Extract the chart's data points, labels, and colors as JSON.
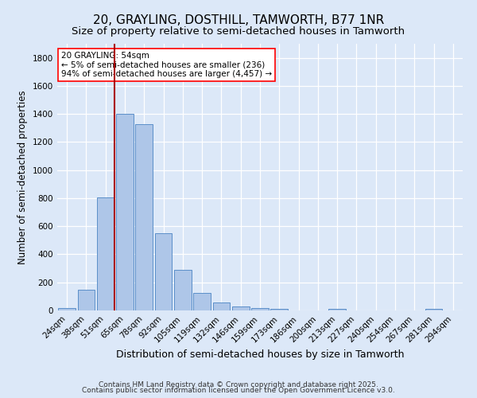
{
  "title": "20, GRAYLING, DOSTHILL, TAMWORTH, B77 1NR",
  "subtitle": "Size of property relative to semi-detached houses in Tamworth",
  "xlabel": "Distribution of semi-detached houses by size in Tamworth",
  "ylabel": "Number of semi-detached properties",
  "categories": [
    "24sqm",
    "38sqm",
    "51sqm",
    "65sqm",
    "78sqm",
    "92sqm",
    "105sqm",
    "119sqm",
    "132sqm",
    "146sqm",
    "159sqm",
    "173sqm",
    "186sqm",
    "200sqm",
    "213sqm",
    "227sqm",
    "240sqm",
    "254sqm",
    "267sqm",
    "281sqm",
    "294sqm"
  ],
  "values": [
    15,
    150,
    805,
    1400,
    1325,
    550,
    290,
    125,
    55,
    28,
    15,
    10,
    0,
    0,
    10,
    0,
    0,
    0,
    0,
    10,
    0
  ],
  "bar_color": "#aec6e8",
  "bar_edge_color": "#5b8fc9",
  "bg_color": "#dce8f8",
  "grid_color": "#ffffff",
  "vline_color": "#aa0000",
  "vline_x_index": 2.45,
  "annotation_text": "20 GRAYLING: 54sqm\n← 5% of semi-detached houses are smaller (236)\n94% of semi-detached houses are larger (4,457) →",
  "ylim": [
    0,
    1900
  ],
  "yticks": [
    0,
    200,
    400,
    600,
    800,
    1000,
    1200,
    1400,
    1600,
    1800
  ],
  "footer_line1": "Contains HM Land Registry data © Crown copyright and database right 2025.",
  "footer_line2": "Contains public sector information licensed under the Open Government Licence v3.0.",
  "title_fontsize": 11,
  "subtitle_fontsize": 9.5,
  "xlabel_fontsize": 9,
  "ylabel_fontsize": 8.5,
  "tick_fontsize": 7.5,
  "footer_fontsize": 6.5,
  "annot_fontsize": 7.5
}
